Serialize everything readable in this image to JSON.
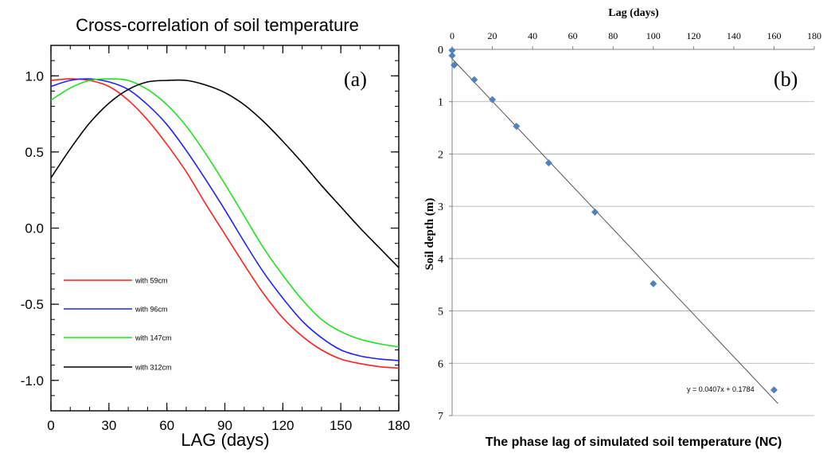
{
  "chart_data": [
    {
      "type": "line",
      "panel_label": "(a)",
      "title": "Cross-correlation of soil temperature",
      "xlabel": "LAG (days)",
      "ylabel": "",
      "xlim": [
        0,
        180
      ],
      "ylim": [
        -1.2,
        1.2
      ],
      "xticks": [
        0,
        30,
        60,
        90,
        120,
        150,
        180
      ],
      "yticks": [
        1.0,
        0.5,
        0.0,
        -0.5,
        -1.0
      ],
      "ytick_labels": [
        "1.0",
        "0.5",
        "0.0",
        "-0.5",
        "-1.0"
      ],
      "legend_position": "lower-left",
      "series": [
        {
          "name": "with 59cm",
          "color": "#ff2020",
          "x": [
            0,
            10,
            20,
            30,
            40,
            50,
            60,
            70,
            80,
            90,
            100,
            110,
            120,
            130,
            140,
            150,
            160,
            170,
            180
          ],
          "values": [
            0.97,
            0.98,
            0.97,
            0.93,
            0.84,
            0.71,
            0.55,
            0.37,
            0.16,
            -0.04,
            -0.24,
            -0.43,
            -0.59,
            -0.71,
            -0.8,
            -0.86,
            -0.89,
            -0.91,
            -0.92
          ]
        },
        {
          "name": "with 96cm",
          "color": "#2020ff",
          "x": [
            0,
            10,
            20,
            30,
            40,
            50,
            60,
            70,
            80,
            90,
            100,
            110,
            120,
            130,
            140,
            150,
            160,
            170,
            180
          ],
          "values": [
            0.93,
            0.97,
            0.98,
            0.96,
            0.91,
            0.81,
            0.68,
            0.51,
            0.32,
            0.12,
            -0.09,
            -0.29,
            -0.46,
            -0.61,
            -0.72,
            -0.8,
            -0.84,
            -0.86,
            -0.87
          ]
        },
        {
          "name": "with 147cm",
          "color": "#20e020",
          "x": [
            0,
            10,
            20,
            30,
            40,
            50,
            60,
            70,
            80,
            90,
            100,
            110,
            120,
            130,
            140,
            150,
            160,
            170,
            180
          ],
          "values": [
            0.84,
            0.92,
            0.97,
            0.98,
            0.97,
            0.91,
            0.81,
            0.67,
            0.49,
            0.29,
            0.08,
            -0.13,
            -0.31,
            -0.47,
            -0.6,
            -0.68,
            -0.73,
            -0.76,
            -0.78
          ]
        },
        {
          "name": "with 312cm",
          "color": "#000000",
          "x": [
            0,
            10,
            20,
            30,
            40,
            50,
            60,
            70,
            80,
            90,
            100,
            110,
            120,
            130,
            140,
            150,
            160,
            170,
            180
          ],
          "values": [
            0.33,
            0.52,
            0.69,
            0.82,
            0.91,
            0.96,
            0.97,
            0.97,
            0.94,
            0.89,
            0.81,
            0.7,
            0.57,
            0.43,
            0.28,
            0.14,
            0.0,
            -0.13,
            -0.26
          ]
        }
      ]
    },
    {
      "type": "scatter",
      "panel_label": "(b)",
      "title": "The phase lag of simulated soil temperature (NC)",
      "xlabel": "Lag (days)",
      "ylabel": "Soil depth (m)",
      "xlim": [
        0,
        180
      ],
      "ylim": [
        7,
        0
      ],
      "xticks": [
        0,
        20,
        40,
        60,
        80,
        100,
        120,
        140,
        160,
        180
      ],
      "yticks": [
        0,
        1,
        2,
        3,
        4,
        5,
        6,
        7
      ],
      "grid": "horizontal",
      "marker_color": "#4f81bd",
      "trendline_label": "y = 0.0407x + 0.1784",
      "trendline": {
        "slope": 0.0407,
        "intercept": 0.1784,
        "x_range": [
          0,
          162
        ]
      },
      "series": [
        {
          "x": [
            0,
            0,
            1,
            11,
            20,
            32,
            48,
            71,
            100,
            160
          ],
          "values": [
            0.02,
            0.12,
            0.3,
            0.58,
            0.96,
            1.47,
            2.17,
            3.11,
            4.48,
            6.51
          ]
        }
      ]
    }
  ]
}
